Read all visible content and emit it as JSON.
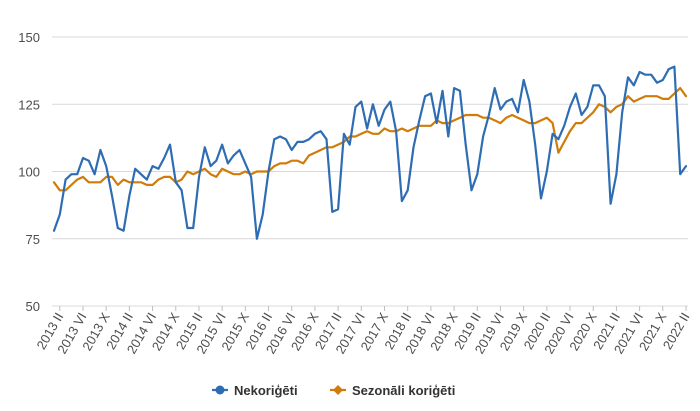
{
  "chart_data": {
    "type": "line",
    "title": "",
    "xlabel": "",
    "ylabel": "",
    "ylim": [
      50,
      150
    ],
    "yticks": [
      50,
      75,
      100,
      125,
      150
    ],
    "grid": "horizontal",
    "legend_position": "bottom",
    "x_tick_labels": [
      "2013 II",
      "2013 VI",
      "2013 X",
      "2014 II",
      "2014 VI",
      "2014 X",
      "2015 II",
      "2015 VI",
      "2015 X",
      "2016 II",
      "2016 VI",
      "2016 X",
      "2017 II",
      "2017 VI",
      "2017 X",
      "2018 II",
      "2018 VI",
      "2018 X",
      "2019 II",
      "2019 VI",
      "2019 X",
      "2020 II",
      "2020 VI",
      "2020 X",
      "2021 II",
      "2021 VI",
      "2021 X",
      "2022 II"
    ],
    "x_start": "2013-01",
    "x_end": "2022-02",
    "series": [
      {
        "name": "Nekoriģēti",
        "color": "#2e6db4",
        "values": [
          78,
          84,
          97,
          99,
          99,
          105,
          104,
          99,
          108,
          102,
          91,
          79,
          78,
          91,
          101,
          99,
          97,
          102,
          101,
          105,
          110,
          96,
          93,
          79,
          79,
          98,
          109,
          102,
          104,
          110,
          103,
          106,
          108,
          103,
          98,
          75,
          84,
          100,
          112,
          113,
          112,
          108,
          111,
          111,
          112,
          114,
          115,
          112,
          85,
          86,
          114,
          110,
          124,
          126,
          116,
          125,
          117,
          123,
          126,
          115,
          89,
          93,
          109,
          119,
          128,
          129,
          118,
          130,
          113,
          131,
          130,
          110,
          93,
          99,
          113,
          121,
          131,
          123,
          126,
          127,
          122,
          134,
          126,
          110,
          90,
          100,
          114,
          112,
          117,
          124,
          129,
          121,
          124,
          132,
          132,
          128,
          88,
          99,
          122,
          135,
          132,
          137,
          136,
          136,
          133,
          134,
          138,
          139,
          99,
          102
        ],
        "note_values_read": "monthly, Jan 2013 – Feb 2022"
      },
      {
        "name": "Sezonāli koriģēti",
        "color": "#d07c0b",
        "values": [
          96,
          93,
          93,
          95,
          97,
          98,
          96,
          96,
          96,
          98,
          98,
          95,
          97,
          96,
          96,
          96,
          95,
          95,
          97,
          98,
          98,
          96,
          97,
          100,
          99,
          100,
          101,
          99,
          98,
          101,
          100,
          99,
          99,
          100,
          99,
          100,
          100,
          100,
          102,
          103,
          103,
          104,
          104,
          103,
          106,
          107,
          108,
          109,
          109,
          110,
          111,
          113,
          113,
          114,
          115,
          114,
          114,
          116,
          115,
          115,
          116,
          115,
          116,
          117,
          117,
          117,
          119,
          118,
          118,
          119,
          120,
          121,
          121,
          121,
          120,
          120,
          119,
          118,
          120,
          121,
          120,
          119,
          118,
          118,
          119,
          120,
          118,
          107,
          111,
          115,
          118,
          118,
          120,
          122,
          125,
          124,
          122,
          124,
          125,
          128,
          126,
          127,
          128,
          128,
          128,
          127,
          127,
          129,
          131,
          128
        ]
      }
    ]
  }
}
